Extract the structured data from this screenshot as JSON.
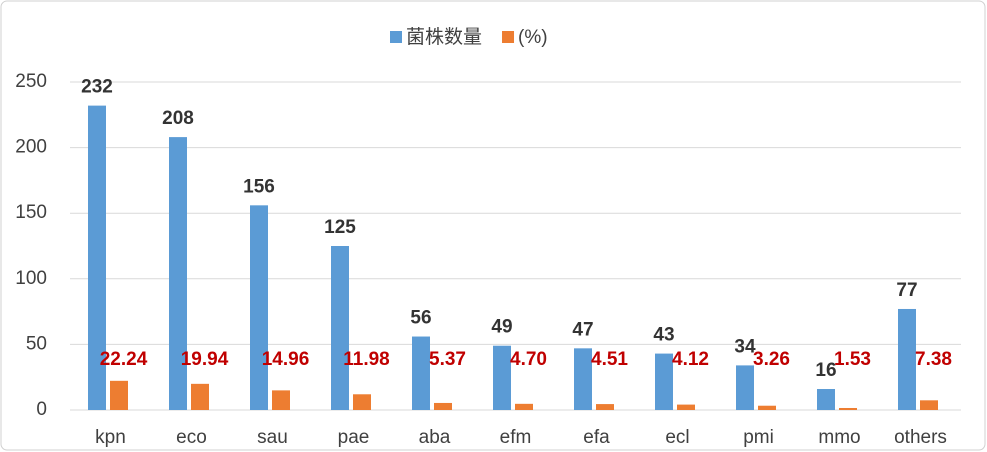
{
  "chart_data": {
    "type": "bar",
    "categories": [
      "kpn",
      "eco",
      "sau",
      "pae",
      "aba",
      "efm",
      "efa",
      "ecl",
      "pmi",
      "mmo",
      "others"
    ],
    "series": [
      {
        "name": "菌株数量",
        "color": "#5b9bd5",
        "label_color": "#333333",
        "values": [
          232,
          208,
          156,
          125,
          56,
          49,
          47,
          43,
          34,
          16,
          77
        ]
      },
      {
        "name": "(%)",
        "color": "#ed7d31",
        "label_color": "#c00000",
        "values": [
          22.24,
          19.94,
          14.96,
          11.98,
          5.37,
          4.7,
          4.51,
          4.12,
          3.26,
          1.53,
          7.38
        ],
        "value_labels": [
          "22.24",
          "19.94",
          "14.96",
          "11.98",
          "5.37",
          "4.70",
          "4.51",
          "4.12",
          "3.26",
          "1.53",
          "7.38"
        ]
      }
    ],
    "ylim": [
      0,
      250
    ],
    "yticks": [
      0,
      50,
      100,
      150,
      200,
      250
    ],
    "grid": true,
    "legend": "top"
  }
}
